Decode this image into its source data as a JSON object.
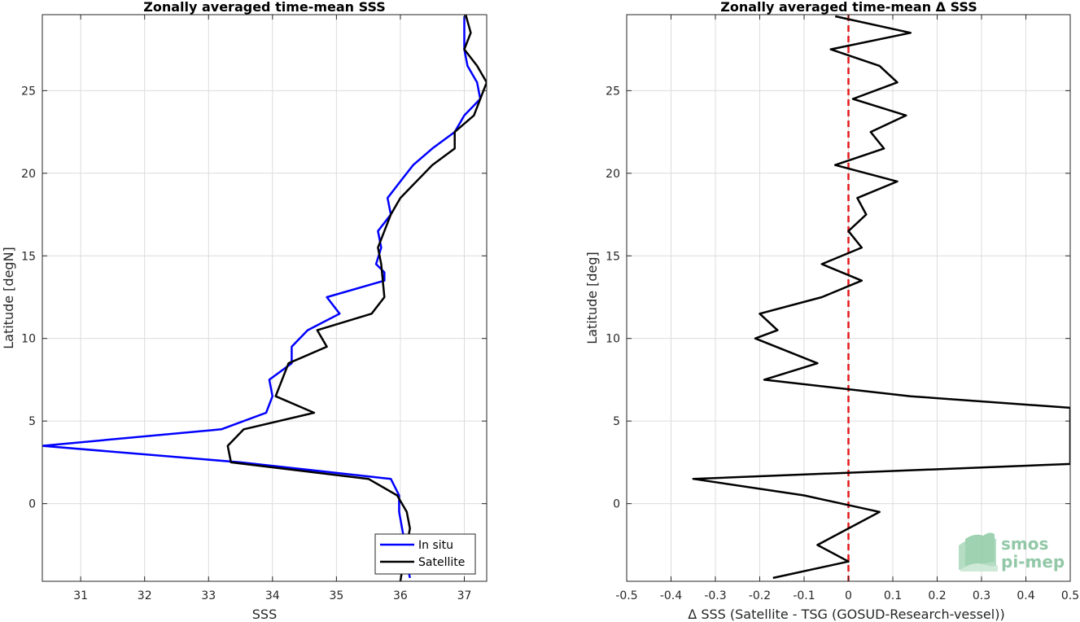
{
  "chart_data": [
    {
      "type": "line",
      "title": "Zonally averaged time-mean SSS",
      "xlabel": "SSS",
      "ylabel": "Latitude [degN]",
      "xlim": [
        30.4,
        37.35
      ],
      "ylim": [
        -4.7,
        29.6
      ],
      "xticks": [
        31,
        32,
        33,
        34,
        35,
        36,
        37
      ],
      "yticks": [
        0,
        5,
        10,
        15,
        20,
        25
      ],
      "grid": true,
      "legend_placement": "bottom-right",
      "series": [
        {
          "name": "In situ",
          "color": "#0000ff",
          "x": [
            36.15,
            36.1,
            36.05,
            35.98,
            35.98,
            35.85,
            33.5,
            30.4,
            33.2,
            33.9,
            34.0,
            33.95,
            34.3,
            34.3,
            34.55,
            35.05,
            34.85,
            35.75,
            35.75,
            35.62,
            35.7,
            35.65,
            35.85,
            35.8,
            36.0,
            36.2,
            36.5,
            36.85,
            37.0,
            37.25,
            37.2,
            37.05,
            37.0,
            37.0
          ],
          "y": [
            -4.5,
            -3.5,
            -2.0,
            -0.5,
            0.5,
            1.5,
            2.5,
            3.5,
            4.5,
            5.5,
            6.5,
            7.5,
            8.5,
            9.5,
            10.5,
            11.5,
            12.5,
            13.5,
            14.0,
            14.5,
            15.5,
            16.5,
            17.5,
            18.5,
            19.5,
            20.5,
            21.5,
            22.5,
            23.5,
            24.5,
            25.5,
            26.5,
            27.5,
            29.5
          ]
        },
        {
          "name": "Satellite",
          "color": "#000000",
          "x": [
            36.0,
            36.05,
            36.15,
            36.1,
            35.95,
            35.5,
            33.35,
            33.3,
            33.55,
            34.65,
            34.05,
            34.15,
            34.25,
            34.85,
            34.7,
            35.55,
            35.75,
            35.7,
            35.65,
            35.75,
            35.85,
            36.0,
            36.5,
            36.85,
            36.85,
            37.15,
            37.35,
            37.2,
            37.0,
            37.1,
            37.0
          ],
          "y": [
            -4.7,
            -3.5,
            -1.5,
            -0.5,
            0.5,
            1.5,
            2.5,
            3.5,
            4.5,
            5.5,
            6.5,
            7.5,
            8.5,
            9.5,
            10.5,
            11.5,
            12.5,
            14.5,
            15.5,
            16.5,
            17.5,
            18.5,
            20.5,
            21.5,
            22.5,
            23.5,
            25.5,
            26.5,
            27.5,
            28.5,
            29.9
          ]
        }
      ]
    },
    {
      "type": "line",
      "title": "Zonally averaged time-mean Δ SSS",
      "xlabel": "Δ SSS (Satellite - TSG (GOSUD-Research-vessel))",
      "ylabel": "Latitude [deg]",
      "xlim": [
        -0.5,
        0.5
      ],
      "ylim": [
        -4.7,
        29.6
      ],
      "xticks": [
        -0.5,
        -0.4,
        -0.3,
        -0.2,
        -0.1,
        0,
        0.1,
        0.2,
        0.3,
        0.4,
        0.5
      ],
      "yticks": [
        0,
        5,
        10,
        15,
        20,
        25
      ],
      "grid": true,
      "zero_line_color": "#e41a1c",
      "series": [
        {
          "color": "#000000",
          "x": [
            -0.17,
            0.0,
            -0.07,
            0.07,
            -0.1,
            -0.35,
            0.5,
            0.5,
            0.14,
            -0.19,
            -0.07,
            -0.21,
            -0.16,
            -0.2,
            -0.06,
            0.03,
            -0.06,
            0.03,
            0.0,
            0.04,
            0.02,
            0.11,
            -0.03,
            0.08,
            0.05,
            0.13,
            0.01,
            0.11,
            0.07,
            -0.04,
            0.14,
            -0.03
          ],
          "y": [
            -4.5,
            -3.5,
            -2.5,
            -0.5,
            0.5,
            1.5,
            2.4,
            5.8,
            6.5,
            7.5,
            8.5,
            10.0,
            10.5,
            11.5,
            12.5,
            13.5,
            14.5,
            15.5,
            16.5,
            17.5,
            18.5,
            19.5,
            20.5,
            21.5,
            22.5,
            23.5,
            24.5,
            25.5,
            26.5,
            27.5,
            28.5,
            29.5
          ]
        }
      ]
    }
  ],
  "legend": {
    "in_situ_label": "In situ",
    "satellite_label": "Satellite"
  },
  "logo": {
    "line1": "smos",
    "line2": "pi-mep"
  }
}
